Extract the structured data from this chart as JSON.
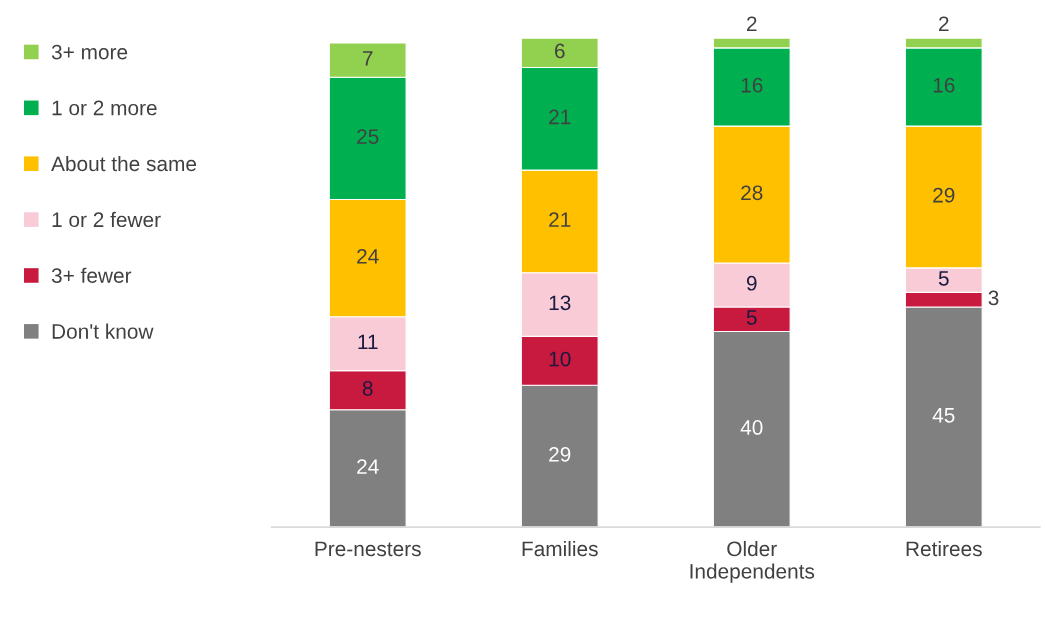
{
  "chart_data": {
    "type": "bar",
    "stacked": true,
    "categories": [
      "Pre-nesters",
      "Families",
      "Older Independents",
      "Retirees"
    ],
    "series": [
      {
        "name": "Don't know",
        "color": "#808080",
        "values": [
          24,
          29,
          40,
          45
        ]
      },
      {
        "name": "3+ fewer",
        "color": "#c8193f",
        "values": [
          8,
          10,
          5,
          3
        ]
      },
      {
        "name": "1 or 2 fewer",
        "color": "#f8cbd6",
        "values": [
          11,
          13,
          9,
          5
        ]
      },
      {
        "name": "About the same",
        "color": "#ffc000",
        "values": [
          24,
          21,
          28,
          29
        ]
      },
      {
        "name": "1 or 2 more",
        "color": "#00b050",
        "values": [
          25,
          21,
          16,
          16
        ]
      },
      {
        "name": "3+ more",
        "color": "#92d050",
        "values": [
          7,
          6,
          2,
          2
        ]
      }
    ],
    "ylim": [
      0,
      100
    ],
    "tick_labels": "x",
    "data_labels": true,
    "legend": "left",
    "grid": false
  }
}
